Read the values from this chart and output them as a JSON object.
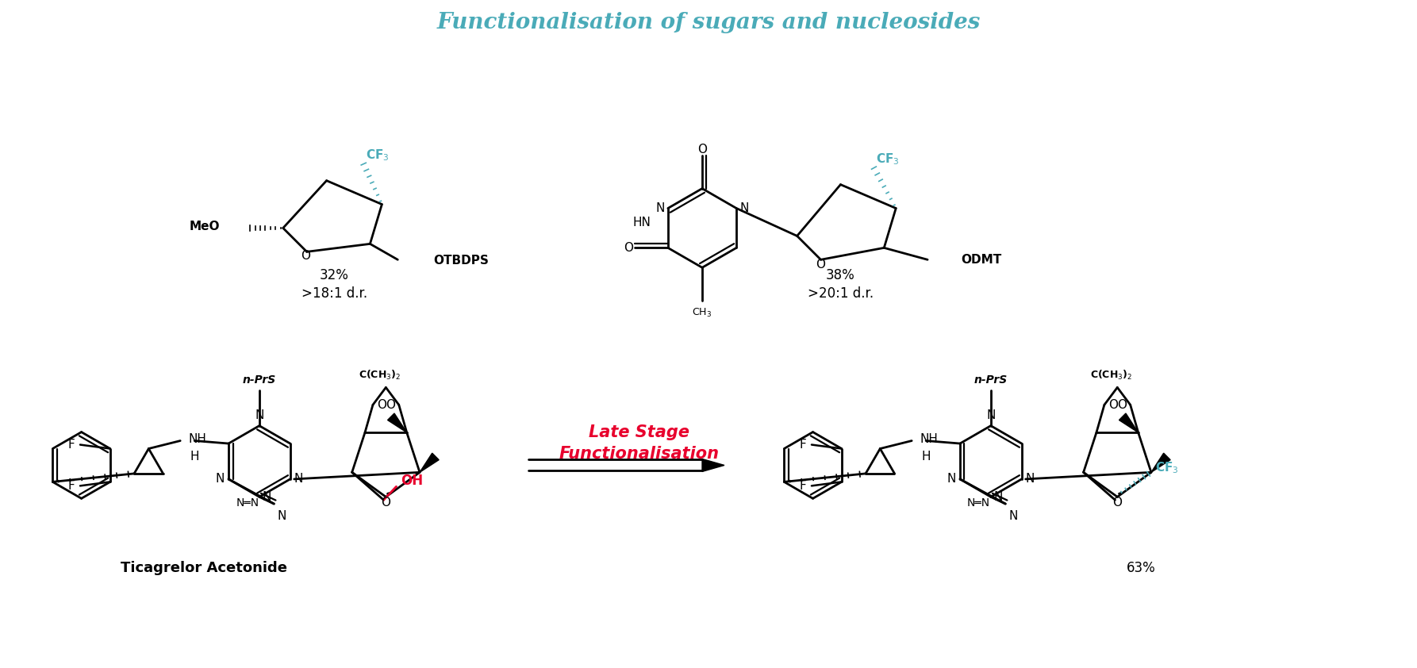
{
  "title": "Functionalisation of sugars and nucleosides",
  "title_color": "#4AABB8",
  "title_fontsize": 20,
  "bg_color": "#FFFFFF",
  "teal": "#4AABB8",
  "red": "#E8002D",
  "black": "#000000",
  "label1_yield": "32%",
  "label1_dr": ">18:1 d.r.",
  "label2_yield": "38%",
  "label2_dr": ">20:1 d.r.",
  "label3_yield": "63%",
  "late_stage_line1": "Late Stage",
  "late_stage_line2": "Functionalisation",
  "ticagrelor_label": "Ticagrelor Acetonide"
}
